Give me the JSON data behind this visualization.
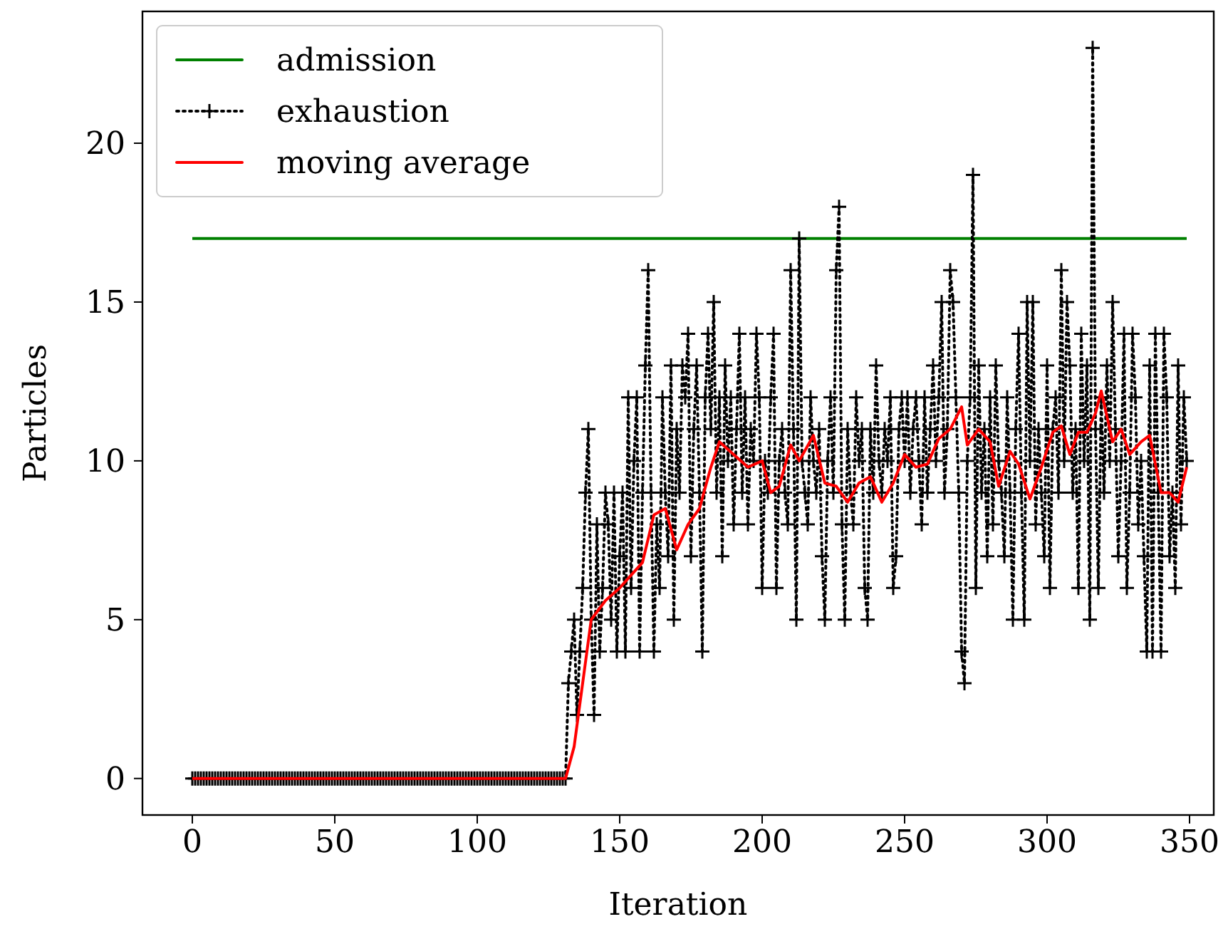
{
  "chart_data": {
    "type": "line",
    "xlabel": "Iteration",
    "ylabel": "Particles",
    "xlim": [
      -17.5,
      358.5
    ],
    "ylim": [
      -1.15,
      24.15
    ],
    "xticks": [
      0,
      50,
      100,
      150,
      200,
      250,
      300,
      350
    ],
    "yticks": [
      0,
      5,
      10,
      15,
      20
    ],
    "grid": false,
    "legend": "top left",
    "x": [
      0,
      1,
      2,
      3,
      4,
      5,
      6,
      7,
      8,
      9,
      10,
      11,
      12,
      13,
      14,
      15,
      16,
      17,
      18,
      19,
      20,
      21,
      22,
      23,
      24,
      25,
      26,
      27,
      28,
      29,
      30,
      31,
      32,
      33,
      34,
      35,
      36,
      37,
      38,
      39,
      40,
      41,
      42,
      43,
      44,
      45,
      46,
      47,
      48,
      49,
      50,
      51,
      52,
      53,
      54,
      55,
      56,
      57,
      58,
      59,
      60,
      61,
      62,
      63,
      64,
      65,
      66,
      67,
      68,
      69,
      70,
      71,
      72,
      73,
      74,
      75,
      76,
      77,
      78,
      79,
      80,
      81,
      82,
      83,
      84,
      85,
      86,
      87,
      88,
      89,
      90,
      91,
      92,
      93,
      94,
      95,
      96,
      97,
      98,
      99,
      100,
      101,
      102,
      103,
      104,
      105,
      106,
      107,
      108,
      109,
      110,
      111,
      112,
      113,
      114,
      115,
      116,
      117,
      118,
      119,
      120,
      121,
      122,
      123,
      124,
      125,
      126,
      127,
      128,
      129,
      130,
      131,
      132,
      133,
      134,
      135,
      136,
      137,
      138,
      139,
      140,
      141,
      142,
      143,
      144,
      145,
      146,
      147,
      148,
      149,
      150,
      151,
      152,
      153,
      154,
      155,
      156,
      157,
      158,
      159,
      160,
      161,
      162,
      163,
      164,
      165,
      166,
      167,
      168,
      169,
      170,
      171,
      172,
      173,
      174,
      175,
      176,
      177,
      178,
      179,
      180,
      181,
      182,
      183,
      184,
      185,
      186,
      187,
      188,
      189,
      190,
      191,
      192,
      193,
      194,
      195,
      196,
      197,
      198,
      199,
      200,
      201,
      202,
      203,
      204,
      205,
      206,
      207,
      208,
      209,
      210,
      211,
      212,
      213,
      214,
      215,
      216,
      217,
      218,
      219,
      220,
      221,
      222,
      223,
      224,
      225,
      226,
      227,
      228,
      229,
      230,
      231,
      232,
      233,
      234,
      235,
      236,
      237,
      238,
      239,
      240,
      241,
      242,
      243,
      244,
      245,
      246,
      247,
      248,
      249,
      250,
      251,
      252,
      253,
      254,
      255,
      256,
      257,
      258,
      259,
      260,
      261,
      262,
      263,
      264,
      265,
      266,
      267,
      268,
      269,
      270,
      271,
      272,
      273,
      274,
      275,
      276,
      277,
      278,
      279,
      280,
      281,
      282,
      283,
      284,
      285,
      286,
      287,
      288,
      289,
      290,
      291,
      292,
      293,
      294,
      295,
      296,
      297,
      298,
      299,
      300,
      301,
      302,
      303,
      304,
      305,
      306,
      307,
      308,
      309,
      310,
      311,
      312,
      313,
      314,
      315,
      316,
      317,
      318,
      319,
      320,
      321,
      322,
      323,
      324,
      325,
      326,
      327,
      328,
      329,
      330,
      331,
      332,
      333,
      334,
      335,
      336,
      337,
      338,
      339,
      340,
      341,
      342,
      343,
      344,
      345,
      346,
      347,
      348,
      349
    ],
    "series": [
      {
        "name": "admission",
        "color": "#008000",
        "x": [
          0,
          349
        ],
        "values": [
          17,
          17
        ],
        "line_style": "solid",
        "marker": "none"
      },
      {
        "name": "exhaustion",
        "color": "#000000",
        "line_style": "dotted",
        "marker": "cross",
        "values": [
          0,
          0,
          0,
          0,
          0,
          0,
          0,
          0,
          0,
          0,
          0,
          0,
          0,
          0,
          0,
          0,
          0,
          0,
          0,
          0,
          0,
          0,
          0,
          0,
          0,
          0,
          0,
          0,
          0,
          0,
          0,
          0,
          0,
          0,
          0,
          0,
          0,
          0,
          0,
          0,
          0,
          0,
          0,
          0,
          0,
          0,
          0,
          0,
          0,
          0,
          0,
          0,
          0,
          0,
          0,
          0,
          0,
          0,
          0,
          0,
          0,
          0,
          0,
          0,
          0,
          0,
          0,
          0,
          0,
          0,
          0,
          0,
          0,
          0,
          0,
          0,
          0,
          0,
          0,
          0,
          0,
          0,
          0,
          0,
          0,
          0,
          0,
          0,
          0,
          0,
          0,
          0,
          0,
          0,
          0,
          0,
          0,
          0,
          0,
          0,
          0,
          0,
          0,
          0,
          0,
          0,
          0,
          0,
          0,
          0,
          0,
          0,
          0,
          0,
          0,
          0,
          0,
          0,
          0,
          0,
          0,
          0,
          0,
          0,
          0,
          0,
          0,
          0,
          0,
          0,
          0,
          0,
          3,
          4,
          5,
          2,
          4,
          6,
          9,
          11,
          5,
          2,
          8,
          4,
          6,
          9,
          8,
          5,
          9,
          4,
          7,
          9,
          4,
          12,
          6,
          10,
          12,
          4,
          9,
          13,
          16,
          9,
          4,
          8,
          6,
          12,
          9,
          7,
          13,
          5,
          11,
          9,
          13,
          12,
          14,
          7,
          11,
          13,
          9,
          4,
          12,
          14,
          11,
          15,
          9,
          12,
          7,
          13,
          10,
          12,
          8,
          11,
          14,
          9,
          12,
          8,
          11,
          10,
          14,
          12,
          6,
          10,
          9,
          12,
          14,
          6,
          10,
          11,
          9,
          8,
          16,
          11,
          5,
          17,
          10,
          9,
          8,
          12,
          10,
          9,
          11,
          7,
          5,
          10,
          12,
          9,
          16,
          18,
          8,
          5,
          11,
          9,
          8,
          12,
          10,
          11,
          6,
          5,
          11,
          9,
          13,
          10,
          9,
          11,
          10,
          12,
          6,
          7,
          11,
          12,
          10,
          12,
          9,
          11,
          12,
          10,
          8,
          12,
          9,
          11,
          13,
          10,
          12,
          15,
          9,
          11,
          16,
          15,
          12,
          9,
          4,
          3,
          10,
          12,
          19,
          6,
          13,
          9,
          11,
          7,
          12,
          8,
          13,
          10,
          9,
          7,
          12,
          9,
          5,
          11,
          14,
          9,
          5,
          15,
          10,
          15,
          8,
          11,
          9,
          7,
          13,
          6,
          11,
          12,
          9,
          16,
          10,
          15,
          13,
          9,
          11,
          6,
          14,
          10,
          13,
          5,
          23,
          11,
          6,
          12,
          9,
          13,
          10,
          15,
          11,
          7,
          10,
          14,
          6,
          9,
          14,
          12,
          8,
          10,
          7,
          4,
          13,
          4,
          14,
          9,
          4,
          14,
          12,
          7,
          9,
          6,
          13,
          8,
          12,
          10
        ]
      },
      {
        "name": "moving average",
        "color": "#ff0000",
        "line_style": "solid",
        "marker": "none",
        "x": [
          0,
          131,
          134,
          140,
          145,
          150,
          155,
          158,
          162,
          166,
          170,
          174,
          178,
          182,
          185,
          190,
          195,
          200,
          203,
          206,
          210,
          213,
          218,
          222,
          226,
          230,
          234,
          238,
          242,
          246,
          250,
          254,
          258,
          262,
          266,
          270,
          272,
          276,
          280,
          283,
          287,
          290,
          294,
          298,
          302,
          305,
          308,
          311,
          314,
          317,
          319,
          323,
          326,
          329,
          333,
          336,
          340,
          343,
          346,
          349
        ],
        "values": [
          0,
          0,
          1,
          5,
          5.6,
          6,
          6.5,
          6.8,
          8.3,
          8.5,
          7.2,
          8,
          8.5,
          9.8,
          10.6,
          10.2,
          9.8,
          10,
          9,
          9.2,
          10.5,
          10,
          10.8,
          9.3,
          9.2,
          8.7,
          9.3,
          9.5,
          8.7,
          9.3,
          10.2,
          9.8,
          9.9,
          10.7,
          11,
          11.7,
          10.5,
          11,
          10.6,
          9.2,
          10.3,
          9.9,
          8.8,
          9.8,
          10.9,
          11.1,
          10.2,
          10.9,
          10.9,
          11.5,
          12.2,
          10.6,
          11,
          10.2,
          10.6,
          10.8,
          9,
          9,
          8.7,
          9.8
        ]
      }
    ]
  }
}
